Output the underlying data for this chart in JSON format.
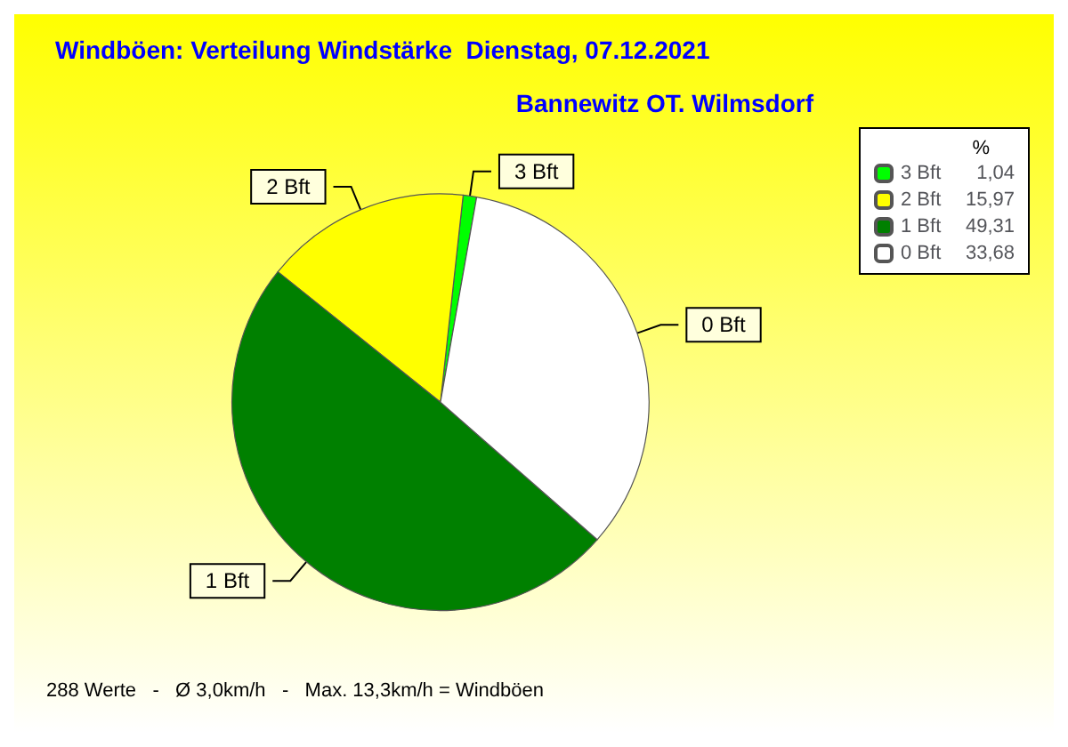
{
  "chart_data": {
    "type": "pie",
    "title": "Windböen: Verteilung Windstärke  Dienstag, 07.12.2021",
    "subtitle": "Bannewitz OT. Wilmsdorf",
    "categories": [
      "3 Bft",
      "2 Bft",
      "1 Bft",
      "0 Bft"
    ],
    "values": [
      1.04,
      15.97,
      49.31,
      33.68
    ],
    "value_labels": [
      "1,04",
      "15,97",
      "49,31",
      "33,68"
    ],
    "colors": [
      "#00ff00",
      "#ffff00",
      "#008000",
      "#ffffff"
    ],
    "legend": "top right",
    "legend_title": "%",
    "annotations": [
      "288 Werte   -   Ø 3,0km/h   -   Max. 13,3km/h = Windböen"
    ]
  }
}
